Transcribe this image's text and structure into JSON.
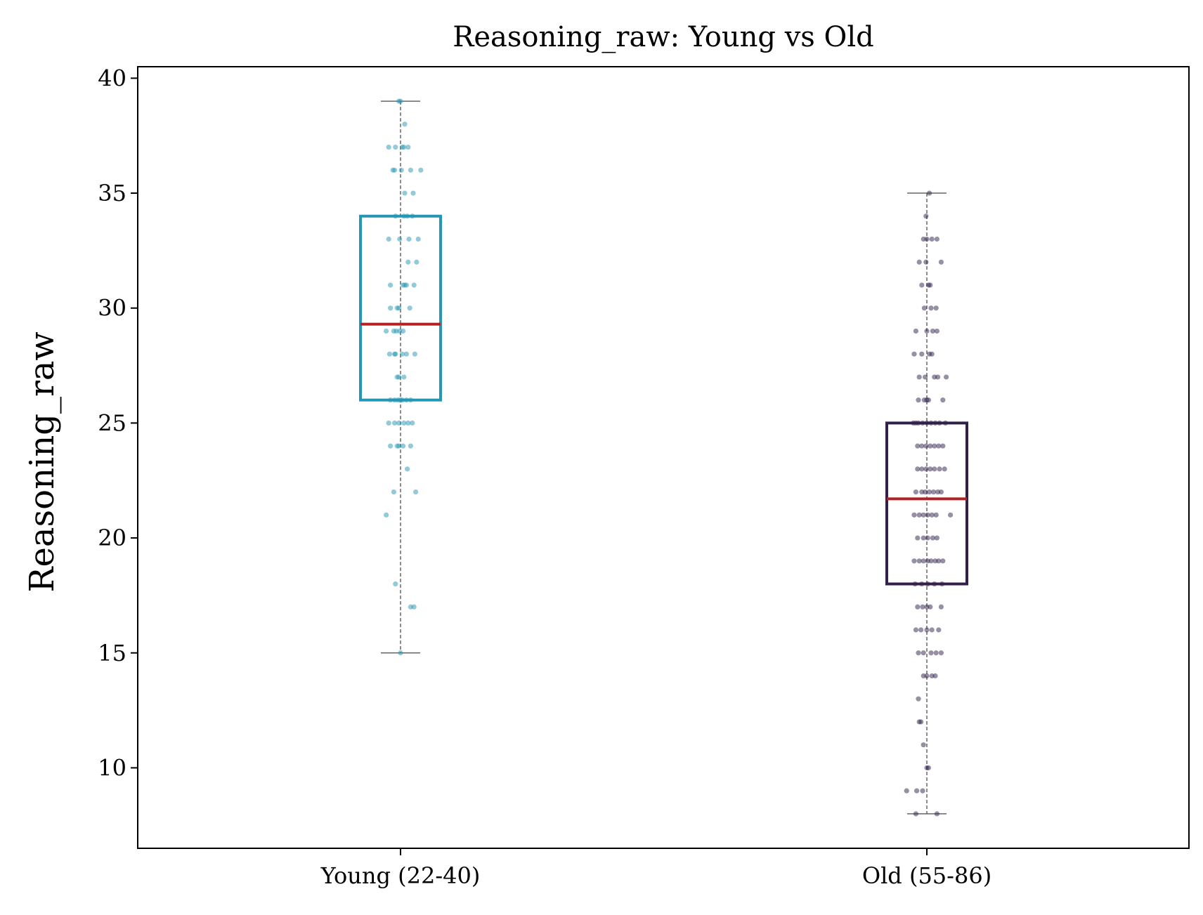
{
  "chart_data": {
    "type": "box",
    "title": "Reasoning_raw: Young vs Old",
    "ylabel": "Reasoning_raw",
    "xlabel": "",
    "ylim": [
      6.5,
      40.5
    ],
    "yticks": [
      10,
      15,
      20,
      25,
      30,
      35,
      40
    ],
    "grid": false,
    "categories": [
      "Young (22-40)",
      "Old (55-86)"
    ],
    "groups": [
      {
        "label": "Young (22-40)",
        "color": "#2596b4",
        "median_color": "#b22222",
        "whisker_low": 15,
        "q1": 26,
        "median": 29.3,
        "q3": 34,
        "whisker_high": 39,
        "points": [
          [
            0.0,
            39
          ],
          [
            -0.02,
            39
          ],
          [
            0.05,
            38
          ],
          [
            -0.14,
            37
          ],
          [
            -0.06,
            37
          ],
          [
            0.02,
            37
          ],
          [
            0.09,
            37
          ],
          [
            0.04,
            37
          ],
          [
            -0.09,
            36
          ],
          [
            0.01,
            36
          ],
          [
            0.12,
            36
          ],
          [
            0.24,
            36
          ],
          [
            -0.07,
            36
          ],
          [
            0.05,
            35
          ],
          [
            0.15,
            35
          ],
          [
            -0.06,
            34
          ],
          [
            0.04,
            34
          ],
          [
            0.14,
            34
          ],
          [
            0.08,
            34
          ],
          [
            -0.14,
            33
          ],
          [
            -0.01,
            33
          ],
          [
            0.1,
            33
          ],
          [
            0.21,
            33
          ],
          [
            0.09,
            32
          ],
          [
            0.19,
            32
          ],
          [
            -0.12,
            31
          ],
          [
            0.03,
            31
          ],
          [
            0.07,
            31
          ],
          [
            0.16,
            31
          ],
          [
            0.05,
            31
          ],
          [
            -0.12,
            30
          ],
          [
            -0.02,
            30
          ],
          [
            0.11,
            30
          ],
          [
            -0.04,
            30
          ],
          [
            -0.17,
            29
          ],
          [
            -0.08,
            29
          ],
          [
            -0.01,
            29
          ],
          [
            0.03,
            29
          ],
          [
            -0.05,
            29
          ],
          [
            -0.13,
            28
          ],
          [
            -0.07,
            28
          ],
          [
            0.02,
            28
          ],
          [
            0.07,
            28
          ],
          [
            0.17,
            28
          ],
          [
            -0.06,
            28
          ],
          [
            -0.04,
            27
          ],
          [
            0.04,
            27
          ],
          [
            -0.02,
            27
          ],
          [
            -0.12,
            26
          ],
          [
            -0.07,
            26
          ],
          [
            -0.03,
            26
          ],
          [
            0.02,
            26
          ],
          [
            0.07,
            26
          ],
          [
            0.12,
            26
          ],
          [
            0.0,
            26
          ],
          [
            -0.14,
            25
          ],
          [
            -0.07,
            25
          ],
          [
            -0.02,
            25
          ],
          [
            0.04,
            25
          ],
          [
            0.09,
            25
          ],
          [
            0.14,
            25
          ],
          [
            -0.12,
            24
          ],
          [
            -0.04,
            24
          ],
          [
            0.03,
            24
          ],
          [
            0.12,
            24
          ],
          [
            -0.02,
            24
          ],
          [
            0.08,
            23
          ],
          [
            -0.08,
            22
          ],
          [
            0.18,
            22
          ],
          [
            -0.17,
            21
          ],
          [
            -0.06,
            18
          ],
          [
            0.12,
            17
          ],
          [
            0.16,
            17
          ],
          [
            0.0,
            15
          ]
        ]
      },
      {
        "label": "Old (55-86)",
        "color": "#30204a",
        "median_color": "#b22222",
        "whisker_low": 8,
        "q1": 18,
        "median": 21.7,
        "q3": 25,
        "whisker_high": 35,
        "points": [
          [
            0.03,
            35
          ],
          [
            -0.01,
            34
          ],
          [
            -0.04,
            33
          ],
          [
            0.06,
            33
          ],
          [
            0.12,
            33
          ],
          [
            0.0,
            33
          ],
          [
            -0.09,
            32
          ],
          [
            -0.01,
            32
          ],
          [
            0.17,
            32
          ],
          [
            -0.06,
            31
          ],
          [
            0.02,
            31
          ],
          [
            0.04,
            31
          ],
          [
            -0.03,
            30
          ],
          [
            0.05,
            30
          ],
          [
            0.11,
            30
          ],
          [
            -0.13,
            29
          ],
          [
            0.0,
            29
          ],
          [
            0.07,
            29
          ],
          [
            0.12,
            29
          ],
          [
            -0.15,
            28
          ],
          [
            -0.06,
            28
          ],
          [
            0.03,
            28
          ],
          [
            0.06,
            28
          ],
          [
            -0.09,
            27
          ],
          [
            -0.02,
            27
          ],
          [
            0.09,
            27
          ],
          [
            0.13,
            27
          ],
          [
            0.23,
            27
          ],
          [
            -0.1,
            26
          ],
          [
            -0.03,
            26
          ],
          [
            0.0,
            26
          ],
          [
            0.02,
            26
          ],
          [
            0.19,
            26
          ],
          [
            -0.16,
            25
          ],
          [
            -0.1,
            25
          ],
          [
            -0.05,
            25
          ],
          [
            0.0,
            25
          ],
          [
            0.05,
            25
          ],
          [
            0.1,
            25
          ],
          [
            0.15,
            25
          ],
          [
            0.22,
            25
          ],
          [
            -0.13,
            25
          ],
          [
            -0.11,
            24
          ],
          [
            -0.06,
            24
          ],
          [
            -0.01,
            24
          ],
          [
            0.04,
            24
          ],
          [
            0.09,
            24
          ],
          [
            0.14,
            24
          ],
          [
            0.19,
            24
          ],
          [
            -0.11,
            23
          ],
          [
            -0.06,
            23
          ],
          [
            -0.01,
            23
          ],
          [
            0.04,
            23
          ],
          [
            0.09,
            23
          ],
          [
            0.15,
            23
          ],
          [
            0.21,
            23
          ],
          [
            -0.13,
            22
          ],
          [
            -0.06,
            22
          ],
          [
            -0.02,
            22
          ],
          [
            0.03,
            22
          ],
          [
            0.08,
            22
          ],
          [
            0.13,
            22
          ],
          [
            0.17,
            22
          ],
          [
            -0.15,
            21
          ],
          [
            -0.09,
            21
          ],
          [
            -0.04,
            21
          ],
          [
            0.01,
            21
          ],
          [
            0.06,
            21
          ],
          [
            0.11,
            21
          ],
          [
            0.28,
            21
          ],
          [
            -0.11,
            20
          ],
          [
            -0.04,
            20
          ],
          [
            0.01,
            20
          ],
          [
            0.07,
            20
          ],
          [
            0.12,
            20
          ],
          [
            -0.15,
            19
          ],
          [
            -0.09,
            19
          ],
          [
            -0.04,
            19
          ],
          [
            0.01,
            19
          ],
          [
            0.05,
            19
          ],
          [
            0.1,
            19
          ],
          [
            0.14,
            19
          ],
          [
            0.19,
            19
          ],
          [
            -0.14,
            18
          ],
          [
            -0.06,
            18
          ],
          [
            0.01,
            18
          ],
          [
            0.09,
            18
          ],
          [
            0.18,
            18
          ],
          [
            -0.11,
            17
          ],
          [
            -0.05,
            17
          ],
          [
            0.0,
            17
          ],
          [
            0.04,
            17
          ],
          [
            0.17,
            17
          ],
          [
            -0.13,
            16
          ],
          [
            -0.07,
            16
          ],
          [
            0.0,
            16
          ],
          [
            0.06,
            16
          ],
          [
            0.14,
            16
          ],
          [
            -0.1,
            15
          ],
          [
            -0.04,
            15
          ],
          [
            0.05,
            15
          ],
          [
            0.11,
            15
          ],
          [
            0.17,
            15
          ],
          [
            -0.04,
            14
          ],
          [
            0.0,
            14
          ],
          [
            0.06,
            14
          ],
          [
            0.1,
            14
          ],
          [
            -0.1,
            13
          ],
          [
            -0.07,
            12
          ],
          [
            -0.09,
            12
          ],
          [
            -0.04,
            11
          ],
          [
            0.0,
            10
          ],
          [
            0.02,
            10
          ],
          [
            -0.24,
            9
          ],
          [
            -0.12,
            9
          ],
          [
            -0.05,
            9
          ],
          [
            -0.13,
            8
          ],
          [
            0.12,
            8
          ]
        ]
      }
    ]
  }
}
